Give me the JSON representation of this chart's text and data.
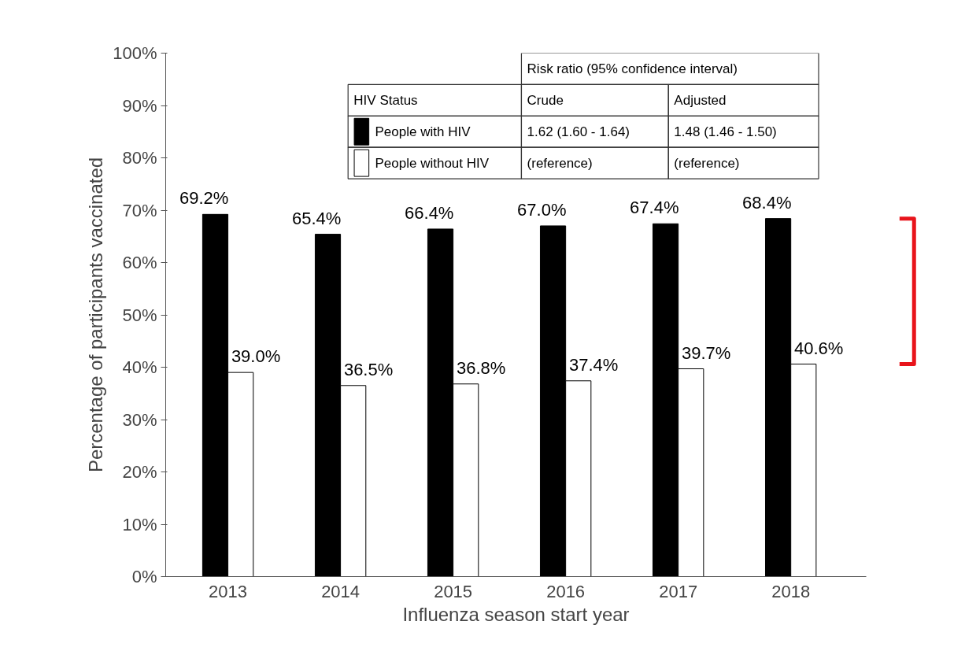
{
  "chart_data": {
    "type": "bar",
    "categories": [
      "2013",
      "2014",
      "2015",
      "2016",
      "2017",
      "2018"
    ],
    "xlabel": "Influenza season start year",
    "ylabel": "Percentage of participants vaccinated",
    "ylim": [
      0,
      100
    ],
    "yticks": [
      {
        "value": 0,
        "label": "0%"
      },
      {
        "value": 10,
        "label": "10%"
      },
      {
        "value": 20,
        "label": "20%"
      },
      {
        "value": 30,
        "label": "30%"
      },
      {
        "value": 40,
        "label": "40%"
      },
      {
        "value": 50,
        "label": "50%"
      },
      {
        "value": 60,
        "label": "60%"
      },
      {
        "value": 70,
        "label": "70%"
      },
      {
        "value": 80,
        "label": "80%"
      },
      {
        "value": 90,
        "label": "90%"
      },
      {
        "value": 100,
        "label": "100%"
      }
    ],
    "series": [
      {
        "name": "People with HIV",
        "color": "#000000",
        "values": [
          69.2,
          65.4,
          66.4,
          67.0,
          67.4,
          68.4
        ],
        "value_labels": [
          "69.2%",
          "65.4%",
          "66.4%",
          "67.0%",
          "67.4%",
          "68.4%"
        ]
      },
      {
        "name": "People without HIV",
        "color": "#ffffff",
        "values": [
          39.0,
          36.5,
          36.8,
          37.4,
          39.7,
          40.6
        ],
        "value_labels": [
          "39.0%",
          "36.5%",
          "36.8%",
          "37.4%",
          "39.7%",
          "40.6%"
        ]
      }
    ],
    "legend_title": "HIV Status",
    "legend": "top",
    "annotations": [
      "Risk ratio (95% confidence interval)",
      "Crude",
      "Adjusted",
      "1.62 (1.60 - 1.64)",
      "1.48 (1.46 - 1.50)",
      "(reference)",
      "(reference)"
    ],
    "grid": false
  }
}
